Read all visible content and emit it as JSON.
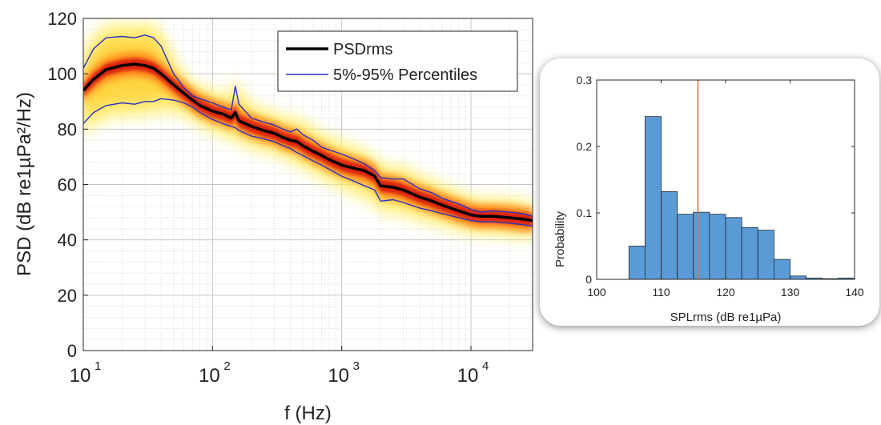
{
  "chart_data": [
    {
      "type": "line",
      "title": "",
      "xlabel": "f (Hz)",
      "ylabel": "PSD (dB re1µPa²/Hz)",
      "xscale": "log",
      "xlim": [
        10,
        30000
      ],
      "ylim": [
        0,
        120
      ],
      "x_ticks": [
        10,
        100,
        1000,
        10000
      ],
      "x_tick_labels": [
        {
          "base": "10",
          "exp": "1"
        },
        {
          "base": "10",
          "exp": "2"
        },
        {
          "base": "10",
          "exp": "3"
        },
        {
          "base": "10",
          "exp": "4"
        }
      ],
      "y_ticks": [
        0,
        20,
        40,
        60,
        80,
        100,
        120
      ],
      "y_tick_labels": [
        "0",
        "20",
        "40",
        "60",
        "80",
        "100",
        "120"
      ],
      "grid": true,
      "minor_grid": true,
      "legend_position": "top-right",
      "density_heatmap": {
        "colormap": "hot",
        "background": "yellow-white"
      },
      "series": [
        {
          "name": "PSDrms",
          "color": "#000000",
          "x": [
            10,
            12,
            15,
            20,
            25,
            30,
            35,
            40,
            50,
            60,
            70,
            80,
            100,
            120,
            140,
            150,
            160,
            200,
            250,
            300,
            350,
            400,
            450,
            500,
            600,
            700,
            800,
            1000,
            1200,
            1500,
            1800,
            2000,
            2500,
            3000,
            4000,
            5000,
            6000,
            8000,
            10000,
            12000,
            15000,
            20000,
            25000,
            30000
          ],
          "y": [
            94,
            98,
            101.5,
            103,
            103.5,
            103,
            102,
            100,
            96,
            93,
            90.5,
            88.5,
            86.5,
            85.5,
            84,
            86,
            83,
            81,
            79.5,
            78.5,
            77,
            76,
            75.5,
            74,
            72,
            70.5,
            69,
            67,
            66,
            65,
            63,
            59.5,
            59,
            58,
            55.5,
            54,
            52.5,
            50.5,
            49,
            48.5,
            48.5,
            48,
            47.5,
            47
          ]
        },
        {
          "name": "5%-95% Percentiles",
          "color": "#2832c2",
          "x": [
            10,
            12,
            15,
            20,
            25,
            30,
            35,
            40,
            50,
            60,
            70,
            80,
            100,
            120,
            140,
            150,
            160,
            200,
            250,
            300,
            350,
            400,
            450,
            500,
            600,
            700,
            800,
            1000,
            1200,
            1500,
            1800,
            2000,
            2500,
            3000,
            4000,
            5000,
            6000,
            8000,
            10000,
            12000,
            15000,
            20000,
            25000,
            30000
          ],
          "y": [
            102,
            109,
            113,
            113.5,
            113,
            114,
            113,
            110,
            100,
            95,
            92,
            91,
            89.5,
            88,
            87,
            95.5,
            89,
            84,
            82.5,
            81.5,
            80,
            79,
            80,
            78,
            76,
            73.5,
            72.5,
            71,
            69.5,
            67.5,
            65,
            62.5,
            62,
            62,
            58.5,
            57,
            55,
            53,
            51,
            50,
            50.5,
            50,
            49.5,
            48.5
          ]
        },
        {
          "name": "",
          "color": "#2832c2",
          "x": [
            10,
            12,
            15,
            20,
            25,
            30,
            35,
            40,
            50,
            60,
            70,
            80,
            100,
            120,
            140,
            150,
            160,
            200,
            250,
            300,
            350,
            400,
            450,
            500,
            600,
            700,
            800,
            1000,
            1200,
            1500,
            1800,
            2000,
            2500,
            3000,
            4000,
            5000,
            6000,
            8000,
            10000,
            12000,
            15000,
            20000,
            25000,
            30000
          ],
          "y": [
            82,
            86,
            88.5,
            89.5,
            89,
            90,
            90,
            91,
            90.5,
            89.5,
            88,
            86,
            83.5,
            82,
            81,
            80.5,
            79.5,
            77.5,
            76.5,
            75.5,
            74,
            73,
            71.5,
            70.5,
            68.5,
            67,
            65.5,
            63,
            61.5,
            59.5,
            58,
            54,
            54.5,
            53.5,
            51.5,
            50.5,
            49.5,
            48,
            47,
            46.5,
            46.5,
            46,
            45.5,
            45
          ]
        }
      ]
    },
    {
      "type": "bar",
      "subtype": "histogram",
      "title": "",
      "xlabel": "SPLrms (dB re1µPa)",
      "ylabel": "Probability",
      "xlim": [
        100,
        140
      ],
      "ylim": [
        0,
        0.3
      ],
      "x_ticks": [
        100,
        110,
        120,
        130,
        140
      ],
      "x_tick_labels": [
        "100",
        "110",
        "120",
        "130",
        "140"
      ],
      "y_ticks": [
        0,
        0.1,
        0.2,
        0.3
      ],
      "y_tick_labels": [
        "0",
        "0.1",
        "0.2",
        "0.3"
      ],
      "bar_color": "#5b9bd5",
      "bin_width": 2.5,
      "bin_edges": [
        105,
        107.5,
        110,
        112.5,
        115,
        117.5,
        120,
        122.5,
        125,
        127.5,
        130,
        132.5,
        135,
        137.5,
        140
      ],
      "values": [
        0.05,
        0.245,
        0.132,
        0.098,
        0.101,
        0.098,
        0.093,
        0.078,
        0.074,
        0.03,
        0.005,
        0.002,
        0.001,
        0.002
      ],
      "reference_line": {
        "x": 115.7,
        "color": "#e06b3a"
      }
    }
  ]
}
